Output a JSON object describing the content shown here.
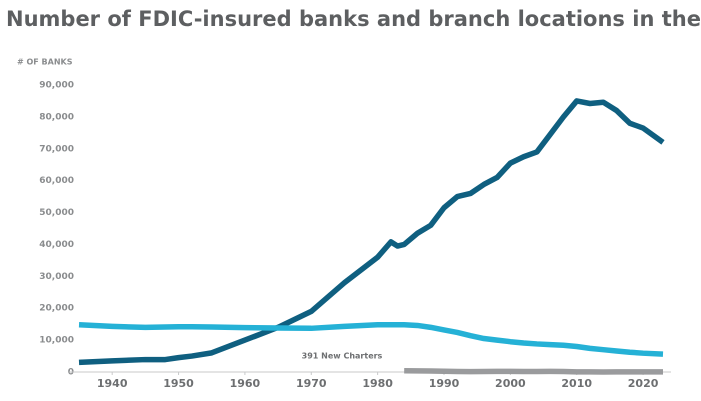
{
  "chart_data": {
    "type": "line",
    "title": "Number of FDIC-insured banks and branch locations in the US.",
    "y_axis_label": "# OF BANKS",
    "annotation": "391 New Charters",
    "x": [
      1935,
      1940,
      1945,
      1948,
      1950,
      1952,
      1955,
      1960,
      1965,
      1970,
      1975,
      1980,
      1982,
      1983,
      1984,
      1986,
      1988,
      1990,
      1992,
      1994,
      1996,
      1998,
      2000,
      2002,
      2004,
      2006,
      2008,
      2010,
      2012,
      2014,
      2016,
      2018,
      2020,
      2023
    ],
    "series": [
      {
        "color": "#0f5f80",
        "values": [
          3000,
          3500,
          3900,
          3900,
          4500,
          5000,
          6000,
          10000,
          14000,
          19000,
          28000,
          36000,
          40800,
          39500,
          40000,
          43500,
          46000,
          51500,
          55000,
          56000,
          58800,
          61000,
          65500,
          67500,
          69000,
          74500,
          80000,
          85000,
          84200,
          84600,
          82000,
          78000,
          76500,
          72000
        ]
      },
      {
        "color": "#25b1d6",
        "values": [
          14800,
          14300,
          14000,
          14100,
          14200,
          14200,
          14100,
          13900,
          13800,
          13700,
          14300,
          14800,
          14800,
          14800,
          14800,
          14600,
          14000,
          13200,
          12400,
          11400,
          10500,
          10000,
          9500,
          9100,
          8800,
          8600,
          8400,
          8000,
          7400,
          7000,
          6600,
          6200,
          5900,
          5600
        ]
      },
      {
        "color": "#9a9b9d",
        "values": [
          null,
          null,
          null,
          null,
          null,
          null,
          null,
          null,
          null,
          null,
          null,
          null,
          null,
          null,
          400,
          350,
          300,
          250,
          150,
          120,
          150,
          200,
          200,
          150,
          150,
          180,
          150,
          50,
          20,
          10,
          20,
          20,
          20,
          20
        ]
      }
    ],
    "xlim": [
      1935,
      2023
    ],
    "xticks": [
      1940,
      1950,
      1960,
      1970,
      1980,
      1990,
      2000,
      2010,
      2020
    ],
    "ylim": [
      0,
      90000
    ],
    "yticks": [
      0,
      {
        "value": 10000,
        "label": "10,000"
      },
      {
        "value": 20000,
        "label": "20,000"
      },
      {
        "value": 30000,
        "label": "30,000"
      },
      {
        "value": 40000,
        "label": "40,000"
      },
      {
        "value": 50000,
        "label": "50,000"
      },
      {
        "value": 60000,
        "label": "60,000"
      },
      {
        "value": 70000,
        "label": "70,000"
      },
      {
        "value": 80000,
        "label": "80,000"
      },
      {
        "value": 90000,
        "label": "90,000"
      }
    ],
    "grid": false
  }
}
